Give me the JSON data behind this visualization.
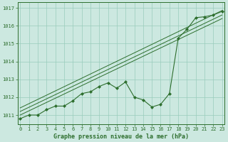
{
  "title": "Graphe pression niveau de la mer (hPa)",
  "bg_color": "#cce8e0",
  "grid_color": "#99ccbb",
  "line_color": "#2d6e2d",
  "marker_color": "#2d6e2d",
  "x_data": [
    0,
    1,
    2,
    3,
    4,
    5,
    6,
    7,
    8,
    9,
    10,
    11,
    12,
    13,
    14,
    15,
    16,
    17,
    18,
    19,
    20,
    21,
    22,
    23
  ],
  "y_data": [
    1010.8,
    1011.0,
    1011.0,
    1011.3,
    1011.5,
    1011.5,
    1011.8,
    1012.2,
    1012.3,
    1012.6,
    1012.8,
    1012.5,
    1012.85,
    1012.0,
    1011.85,
    1011.45,
    1011.6,
    1012.2,
    1015.3,
    1015.8,
    1016.45,
    1016.5,
    1016.6,
    1016.8
  ],
  "trend_start_x": 0,
  "trend_end_x": 23,
  "trend_lines": [
    [
      1011.0,
      1016.4
    ],
    [
      1011.2,
      1016.6
    ],
    [
      1011.4,
      1016.85
    ]
  ],
  "ylim_min": 1010.5,
  "ylim_max": 1017.3,
  "yticks": [
    1011,
    1012,
    1013,
    1014,
    1015,
    1016,
    1017
  ],
  "xticks": [
    0,
    1,
    2,
    3,
    4,
    5,
    6,
    7,
    8,
    9,
    10,
    11,
    12,
    13,
    14,
    15,
    16,
    17,
    18,
    19,
    20,
    21,
    22,
    23
  ],
  "xlim_min": -0.3,
  "xlim_max": 23.3,
  "tick_fontsize": 5,
  "label_fontsize": 6,
  "line_width": 0.8,
  "marker_size": 2.0,
  "trend_lw": 0.7
}
